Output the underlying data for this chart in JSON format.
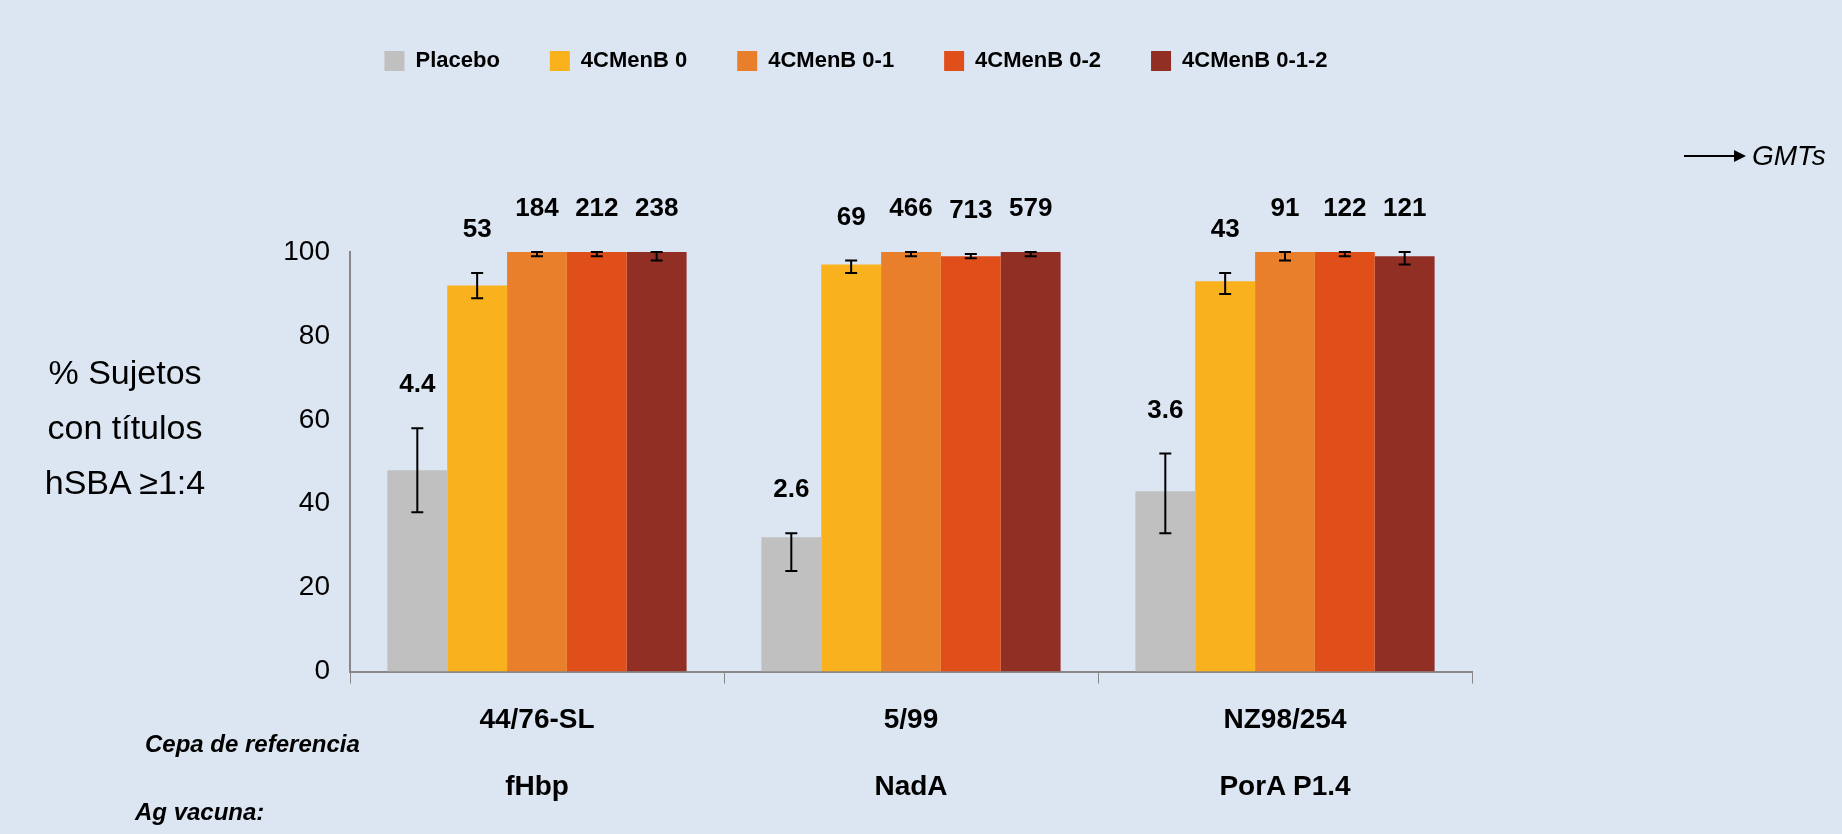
{
  "chart_data": {
    "type": "bar",
    "ylabel": "% Sujetos\ncon  títulos\nhSBA ≥1:4",
    "categories": [
      "44/76-SL\nfHbp",
      "5/99\nNadA",
      "NZ98/254\nPorA P1.4"
    ],
    "series": [
      {
        "name": "Placebo",
        "color": "#c0c0c0",
        "values": [
          48,
          32,
          43
        ],
        "errors": [
          [
            38,
            58
          ],
          [
            24,
            33
          ],
          [
            33,
            52
          ]
        ]
      },
      {
        "name": "4CMenB 0",
        "color": "#f9b11d",
        "values": [
          92,
          97,
          93
        ],
        "errors": [
          [
            89,
            95
          ],
          [
            95,
            98
          ],
          [
            90,
            95
          ]
        ]
      },
      {
        "name": "4CMenB 0-1",
        "color": "#ea7f2b",
        "values": [
          100,
          100,
          100
        ],
        "errors": [
          [
            99,
            100
          ],
          [
            99,
            100
          ],
          [
            98,
            100
          ]
        ]
      },
      {
        "name": "4CMenB 0-2",
        "color": "#e04e1a",
        "values": [
          100,
          99,
          100
        ],
        "errors": [
          [
            99,
            100
          ],
          [
            98.5,
            99.5
          ],
          [
            99,
            100
          ]
        ]
      },
      {
        "name": "4CMenB 0-1-2",
        "color": "#922f24",
        "values": [
          100,
          100,
          99
        ],
        "errors": [
          [
            98,
            100
          ],
          [
            99,
            100
          ],
          [
            97,
            100
          ]
        ]
      }
    ],
    "ylim": [
      0,
      100
    ],
    "yticks": [
      0,
      20,
      40,
      60,
      80,
      100
    ],
    "grid": false,
    "legend": "top",
    "marker": "square",
    "annotations": [
      "Cepa de referencia",
      "Ag  vacuna:",
      "GMTs",
      "4.4",
      "2.6",
      "3.6",
      "53",
      "69",
      "43",
      "184",
      "466",
      "91",
      "212",
      "713",
      "122",
      "238",
      "579",
      "121"
    ]
  }
}
